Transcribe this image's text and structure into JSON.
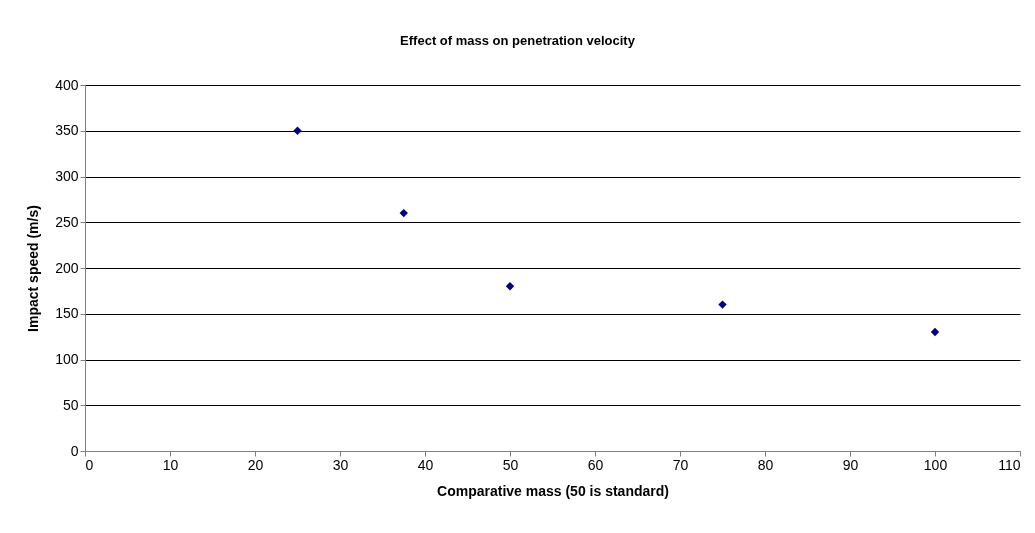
{
  "chart_data": {
    "type": "scatter",
    "title": "Effect of mass on penetration velocity",
    "xlabel": "Comparative mass (50 is standard)",
    "ylabel": "Impact speed (m/s)",
    "x": [
      25,
      37.5,
      50,
      75,
      100
    ],
    "series": [
      {
        "color": "#000080",
        "values": [
          350,
          260,
          180,
          160,
          130
        ]
      }
    ],
    "xlim": [
      0,
      110
    ],
    "xticks": [
      0,
      10,
      20,
      30,
      40,
      50,
      60,
      70,
      80,
      90,
      100,
      110
    ],
    "ylim": [
      0,
      400
    ],
    "yticks": [
      0,
      50,
      100,
      150,
      200,
      250,
      300,
      350,
      400
    ],
    "grid": "y",
    "marker": "diamond"
  }
}
